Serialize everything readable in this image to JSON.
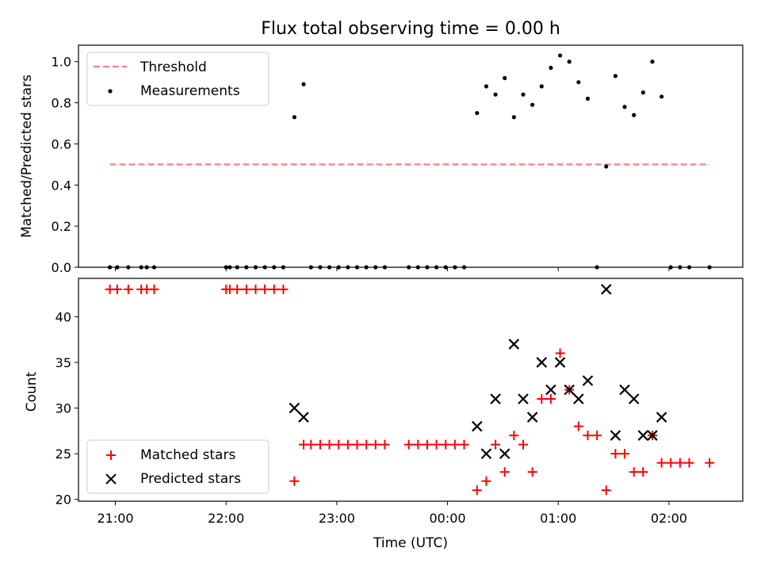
{
  "figure": {
    "title": "Flux total observing time = 0.00 h",
    "xlabel": "Time (UTC)",
    "xticks": [
      {
        "label": "21:00",
        "t": 0
      },
      {
        "label": "22:00",
        "t": 60
      },
      {
        "label": "23:00",
        "t": 120
      },
      {
        "label": "00:00",
        "t": 180
      },
      {
        "label": "01:00",
        "t": 240
      },
      {
        "label": "02:00",
        "t": 300
      }
    ],
    "xlim_minutes_after_2100": [
      -20,
      340
    ],
    "colors": {
      "threshold": "#ff7f7f",
      "measurements": "#000000",
      "matched": "#ff0000",
      "predicted": "#000000"
    }
  },
  "chart_data": [
    {
      "type": "scatter",
      "panel": "top",
      "ylabel": "Matched/Predicted stars",
      "ylim": [
        0,
        1.08
      ],
      "yticks": [
        "0.0",
        "0.2",
        "0.4",
        "0.6",
        "0.8",
        "1.0"
      ],
      "legend": {
        "placement": "top-left",
        "entries": [
          "Threshold",
          "Measurements"
        ]
      },
      "threshold": {
        "name": "Threshold",
        "value": 0.5,
        "x_range": [
          -3,
          322
        ]
      },
      "series": [
        {
          "name": "Measurements",
          "points": [
            [
              -3,
              0
            ],
            [
              1,
              0
            ],
            [
              7,
              0
            ],
            [
              14,
              0
            ],
            [
              17,
              0
            ],
            [
              21,
              0
            ],
            [
              60,
              0
            ],
            [
              62,
              0
            ],
            [
              66,
              0
            ],
            [
              71,
              0
            ],
            [
              76,
              0
            ],
            [
              81,
              0
            ],
            [
              86,
              0
            ],
            [
              91,
              0
            ],
            [
              97,
              0.73
            ],
            [
              102,
              0.89
            ],
            [
              106,
              0
            ],
            [
              111,
              0
            ],
            [
              116,
              0
            ],
            [
              121,
              0
            ],
            [
              126,
              0
            ],
            [
              131,
              0
            ],
            [
              136,
              0
            ],
            [
              141,
              0
            ],
            [
              146,
              0
            ],
            [
              159,
              0
            ],
            [
              164,
              0
            ],
            [
              169,
              0
            ],
            [
              174,
              0
            ],
            [
              179,
              0
            ],
            [
              184,
              0
            ],
            [
              189,
              0
            ],
            [
              196,
              0.75
            ],
            [
              201,
              0.88
            ],
            [
              206,
              0.84
            ],
            [
              211,
              0.92
            ],
            [
              216,
              0.73
            ],
            [
              221,
              0.84
            ],
            [
              226,
              0.79
            ],
            [
              231,
              0.88
            ],
            [
              236,
              0.97
            ],
            [
              241,
              1.03
            ],
            [
              246,
              1.0
            ],
            [
              251,
              0.9
            ],
            [
              256,
              0.82
            ],
            [
              261,
              0
            ],
            [
              266,
              0.49
            ],
            [
              271,
              0.93
            ],
            [
              276,
              0.78
            ],
            [
              281,
              0.74
            ],
            [
              286,
              0.85
            ],
            [
              291,
              1.0
            ],
            [
              296,
              0.83
            ],
            [
              301,
              0
            ],
            [
              306,
              0
            ],
            [
              311,
              0
            ],
            [
              322,
              0
            ]
          ]
        }
      ]
    },
    {
      "type": "scatter",
      "panel": "bottom",
      "ylabel": "Count",
      "ylim": [
        19.8,
        44.2
      ],
      "yticks": [
        "20",
        "25",
        "30",
        "35",
        "40"
      ],
      "legend": {
        "placement": "bottom-left",
        "entries": [
          "Matched stars",
          "Predicted stars"
        ]
      },
      "series": [
        {
          "name": "Matched stars",
          "points": [
            [
              -3,
              43
            ],
            [
              1,
              43
            ],
            [
              7,
              43
            ],
            [
              14,
              43
            ],
            [
              17,
              43
            ],
            [
              21,
              43
            ],
            [
              60,
              43
            ],
            [
              62,
              43
            ],
            [
              66,
              43
            ],
            [
              71,
              43
            ],
            [
              76,
              43
            ],
            [
              81,
              43
            ],
            [
              86,
              43
            ],
            [
              91,
              43
            ],
            [
              97,
              22
            ],
            [
              102,
              26
            ],
            [
              106,
              26
            ],
            [
              111,
              26
            ],
            [
              116,
              26
            ],
            [
              121,
              26
            ],
            [
              126,
              26
            ],
            [
              131,
              26
            ],
            [
              136,
              26
            ],
            [
              141,
              26
            ],
            [
              146,
              26
            ],
            [
              159,
              26
            ],
            [
              164,
              26
            ],
            [
              169,
              26
            ],
            [
              174,
              26
            ],
            [
              179,
              26
            ],
            [
              184,
              26
            ],
            [
              189,
              26
            ],
            [
              196,
              21
            ],
            [
              201,
              22
            ],
            [
              206,
              26
            ],
            [
              211,
              23
            ],
            [
              216,
              27
            ],
            [
              221,
              26
            ],
            [
              226,
              23
            ],
            [
              231,
              31
            ],
            [
              236,
              31
            ],
            [
              241,
              36
            ],
            [
              246,
              32
            ],
            [
              251,
              28
            ],
            [
              256,
              27
            ],
            [
              261,
              27
            ],
            [
              266,
              21
            ],
            [
              271,
              25
            ],
            [
              276,
              25
            ],
            [
              281,
              23
            ],
            [
              286,
              23
            ],
            [
              291,
              27
            ],
            [
              296,
              24
            ],
            [
              301,
              24
            ],
            [
              306,
              24
            ],
            [
              311,
              24
            ],
            [
              322,
              24
            ]
          ]
        },
        {
          "name": "Predicted stars",
          "points": [
            [
              97,
              30
            ],
            [
              102,
              29
            ],
            [
              196,
              28
            ],
            [
              201,
              25
            ],
            [
              206,
              31
            ],
            [
              211,
              25
            ],
            [
              216,
              37
            ],
            [
              221,
              31
            ],
            [
              226,
              29
            ],
            [
              231,
              35
            ],
            [
              236,
              32
            ],
            [
              241,
              35
            ],
            [
              246,
              32
            ],
            [
              251,
              31
            ],
            [
              256,
              33
            ],
            [
              266,
              43
            ],
            [
              271,
              27
            ],
            [
              276,
              32
            ],
            [
              281,
              31
            ],
            [
              286,
              27
            ],
            [
              291,
              27
            ],
            [
              296,
              29
            ]
          ]
        }
      ]
    }
  ]
}
